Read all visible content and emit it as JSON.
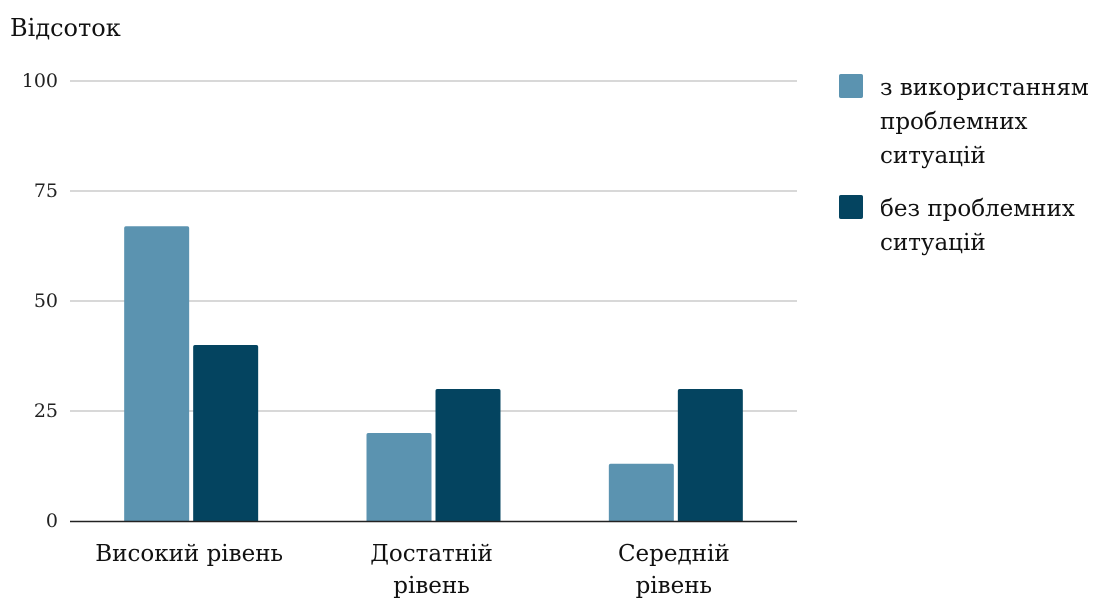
{
  "chart_data": {
    "type": "bar",
    "title": "",
    "ylabel": "Відсоток",
    "xlabel": "",
    "ylim": [
      0,
      100
    ],
    "yticks": [
      0,
      25,
      50,
      75,
      100
    ],
    "grid": true,
    "legend_position": "right",
    "categories": [
      "Високий рівень",
      "Достатній рівень",
      "Середній рівень"
    ],
    "category_lines": [
      [
        "Високий рівень"
      ],
      [
        "Достатній",
        "рівень"
      ],
      [
        "Середній",
        "рівень"
      ]
    ],
    "series": [
      {
        "name": "з використанням проблемних ситуацій",
        "legend_lines": [
          "з використанням",
          "проблемних",
          "ситуацій"
        ],
        "color": "#5b93b0",
        "values": [
          67,
          20,
          13
        ]
      },
      {
        "name": "без проблемних ситуацій",
        "legend_lines": [
          "без проблемних",
          "ситуацій"
        ],
        "color": "#044460",
        "values": [
          40,
          30,
          30
        ]
      }
    ]
  }
}
